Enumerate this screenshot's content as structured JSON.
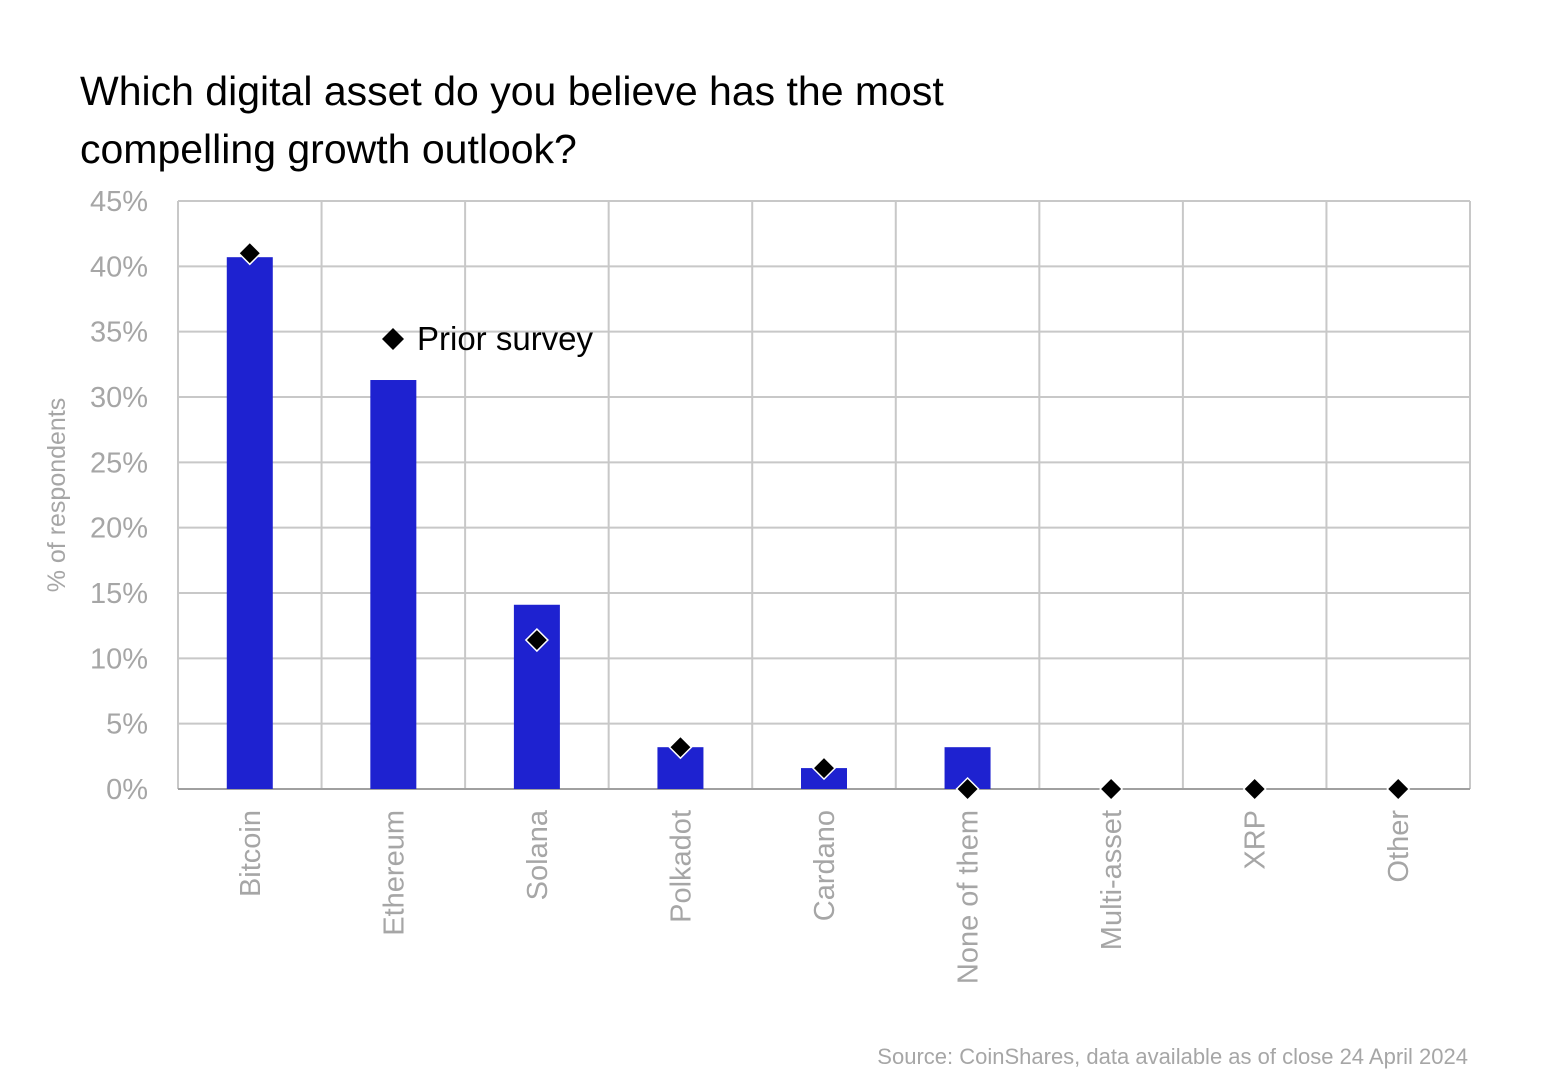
{
  "title_lines": [
    "Which digital asset do you believe has the most",
    "compelling growth outlook?"
  ],
  "source": "Source: CoinShares, data available as of close 24 April 2024",
  "colors": {
    "bar": "#1e22d0",
    "marker": "#000000",
    "grid": "#c8c8c8",
    "axis_text": "#a6a6a6"
  },
  "chart_data": {
    "type": "bar",
    "title": "Which digital asset do you believe has the most compelling growth outlook?",
    "xlabel": "",
    "ylabel": "% of respondents",
    "ylim": [
      0,
      45
    ],
    "yticks": [
      "0%",
      "5%",
      "10%",
      "15%",
      "20%",
      "25%",
      "30%",
      "35%",
      "40%",
      "45%"
    ],
    "grid": true,
    "legend_position": "top-center",
    "categories": [
      "Bitcoin",
      "Ethereum",
      "Solana",
      "Polkadot",
      "Cardano",
      "None of them",
      "Multi-asset",
      "XRP",
      "Other"
    ],
    "series": [
      {
        "name": "",
        "type": "bar",
        "values": [
          40.7,
          31.3,
          14.1,
          3.2,
          1.6,
          3.2,
          0,
          0,
          0
        ]
      },
      {
        "name": "Prior survey",
        "type": "marker",
        "values": [
          41.0,
          null,
          11.4,
          3.2,
          1.6,
          0,
          0,
          0,
          0
        ]
      }
    ]
  }
}
